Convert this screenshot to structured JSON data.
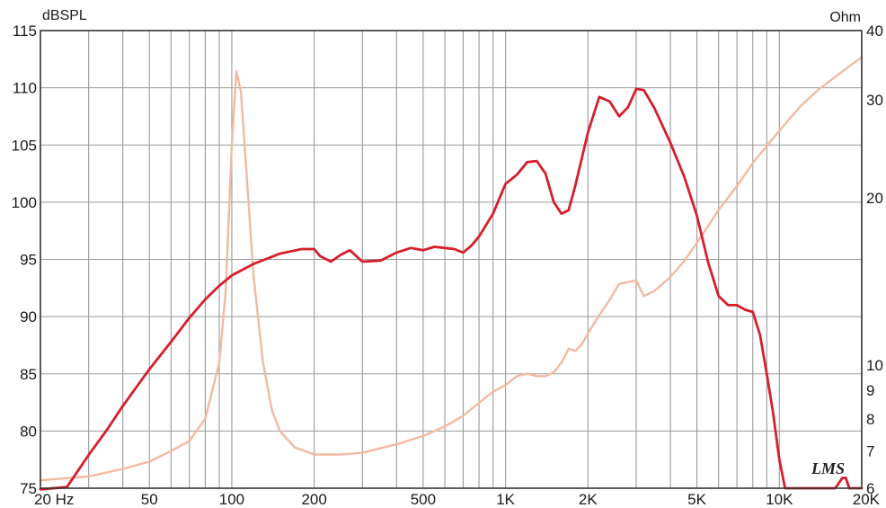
{
  "chart_data": {
    "type": "line",
    "title": "",
    "left_axis_unit": "dBSPL",
    "right_axis_unit": "Ohm",
    "x_scale": "log",
    "xlim": [
      20,
      20000
    ],
    "ylim_left": [
      75,
      115
    ],
    "ylim_right": [
      6,
      40
    ],
    "y_right_scale": "log",
    "grid": true,
    "logo": "LMS",
    "colors": {
      "spl": "#d51f2c",
      "impedance": "#f2b9a2",
      "grid": "#9a9a9a",
      "frame": "#333333"
    },
    "x_ticks": [
      {
        "value": 20,
        "label": "20  Hz"
      },
      {
        "value": 50,
        "label": "50"
      },
      {
        "value": 100,
        "label": "100"
      },
      {
        "value": 200,
        "label": "200"
      },
      {
        "value": 500,
        "label": "500"
      },
      {
        "value": 1000,
        "label": "1K"
      },
      {
        "value": 2000,
        "label": "2K"
      },
      {
        "value": 5000,
        "label": "5K"
      },
      {
        "value": 10000,
        "label": "10K"
      },
      {
        "value": 20000,
        "label": "20K"
      }
    ],
    "y_left_ticks": [
      {
        "value": 75,
        "label": "75"
      },
      {
        "value": 80,
        "label": "80"
      },
      {
        "value": 85,
        "label": "85"
      },
      {
        "value": 90,
        "label": "90"
      },
      {
        "value": 95,
        "label": "95"
      },
      {
        "value": 100,
        "label": "100"
      },
      {
        "value": 105,
        "label": "105"
      },
      {
        "value": 110,
        "label": "110"
      },
      {
        "value": 115,
        "label": "115"
      }
    ],
    "y_right_ticks": [
      {
        "value": 6,
        "label": "6"
      },
      {
        "value": 7,
        "label": "7"
      },
      {
        "value": 8,
        "label": "8"
      },
      {
        "value": 9,
        "label": "9"
      },
      {
        "value": 10,
        "label": "10"
      },
      {
        "value": 20,
        "label": "20"
      },
      {
        "value": 30,
        "label": "30"
      },
      {
        "value": 40,
        "label": "40"
      }
    ],
    "series": [
      {
        "axis": "left",
        "color": "#d51f2c",
        "points": [
          [
            20,
            74.9
          ],
          [
            25,
            75.1
          ],
          [
            30,
            77.9
          ],
          [
            35,
            80.1
          ],
          [
            40,
            82.2
          ],
          [
            50,
            85.4
          ],
          [
            60,
            87.8
          ],
          [
            70,
            89.9
          ],
          [
            80,
            91.5
          ],
          [
            90,
            92.7
          ],
          [
            100,
            93.6
          ],
          [
            120,
            94.6
          ],
          [
            150,
            95.5
          ],
          [
            180,
            95.9
          ],
          [
            200,
            95.9
          ],
          [
            210,
            95.3
          ],
          [
            230,
            94.8
          ],
          [
            250,
            95.4
          ],
          [
            270,
            95.8
          ],
          [
            300,
            94.8
          ],
          [
            350,
            94.9
          ],
          [
            400,
            95.6
          ],
          [
            450,
            96.0
          ],
          [
            500,
            95.8
          ],
          [
            550,
            96.1
          ],
          [
            600,
            96.0
          ],
          [
            650,
            95.9
          ],
          [
            700,
            95.6
          ],
          [
            750,
            96.2
          ],
          [
            800,
            97.0
          ],
          [
            900,
            99.0
          ],
          [
            1000,
            101.6
          ],
          [
            1100,
            102.4
          ],
          [
            1200,
            103.5
          ],
          [
            1300,
            103.6
          ],
          [
            1400,
            102.5
          ],
          [
            1500,
            100.0
          ],
          [
            1600,
            99.0
          ],
          [
            1700,
            99.3
          ],
          [
            1800,
            101.5
          ],
          [
            2000,
            106.1
          ],
          [
            2200,
            109.2
          ],
          [
            2400,
            108.8
          ],
          [
            2600,
            107.5
          ],
          [
            2800,
            108.3
          ],
          [
            3000,
            109.9
          ],
          [
            3200,
            109.8
          ],
          [
            3500,
            108.2
          ],
          [
            4000,
            105.2
          ],
          [
            4500,
            102.2
          ],
          [
            5000,
            98.8
          ],
          [
            5500,
            94.7
          ],
          [
            6000,
            91.8
          ],
          [
            6500,
            91.0
          ],
          [
            7000,
            91.0
          ],
          [
            7500,
            90.6
          ],
          [
            8000,
            90.4
          ],
          [
            8500,
            88.4
          ],
          [
            9000,
            85.0
          ],
          [
            9500,
            81.5
          ],
          [
            10000,
            77.5
          ],
          [
            10500,
            75.0
          ],
          [
            12000,
            75.0
          ],
          [
            16000,
            75.0
          ],
          [
            17000,
            75.9
          ],
          [
            17500,
            75.9
          ],
          [
            18000,
            75.0
          ],
          [
            20000,
            75.0
          ]
        ]
      },
      {
        "axis": "right",
        "color": "#f2b9a2",
        "points": [
          [
            20,
            6.2
          ],
          [
            30,
            6.3
          ],
          [
            40,
            6.5
          ],
          [
            50,
            6.7
          ],
          [
            60,
            7.0
          ],
          [
            70,
            7.3
          ],
          [
            80,
            8.0
          ],
          [
            90,
            10.1
          ],
          [
            95,
            13.6
          ],
          [
            100,
            25.0
          ],
          [
            104,
            33.8
          ],
          [
            108,
            31.0
          ],
          [
            112,
            24.0
          ],
          [
            120,
            14.5
          ],
          [
            130,
            10.1
          ],
          [
            140,
            8.3
          ],
          [
            150,
            7.6
          ],
          [
            170,
            7.1
          ],
          [
            200,
            6.9
          ],
          [
            250,
            6.9
          ],
          [
            300,
            6.95
          ],
          [
            400,
            7.2
          ],
          [
            500,
            7.45
          ],
          [
            600,
            7.75
          ],
          [
            700,
            8.1
          ],
          [
            800,
            8.55
          ],
          [
            900,
            8.95
          ],
          [
            1000,
            9.2
          ],
          [
            1100,
            9.55
          ],
          [
            1200,
            9.65
          ],
          [
            1300,
            9.55
          ],
          [
            1400,
            9.55
          ],
          [
            1500,
            9.7
          ],
          [
            1600,
            10.1
          ],
          [
            1700,
            10.7
          ],
          [
            1800,
            10.6
          ],
          [
            1900,
            10.9
          ],
          [
            2000,
            11.4
          ],
          [
            2200,
            12.3
          ],
          [
            2400,
            13.1
          ],
          [
            2600,
            14.0
          ],
          [
            2800,
            14.1
          ],
          [
            3000,
            14.2
          ],
          [
            3200,
            13.3
          ],
          [
            3500,
            13.6
          ],
          [
            4000,
            14.4
          ],
          [
            4500,
            15.4
          ],
          [
            5000,
            16.6
          ],
          [
            5500,
            17.8
          ],
          [
            6000,
            19.0
          ],
          [
            7000,
            21.0
          ],
          [
            8000,
            23.1
          ],
          [
            9000,
            24.8
          ],
          [
            10000,
            26.4
          ],
          [
            12000,
            29.3
          ],
          [
            14000,
            31.4
          ],
          [
            16000,
            33.0
          ],
          [
            18000,
            34.5
          ],
          [
            20000,
            35.8
          ]
        ]
      }
    ]
  }
}
